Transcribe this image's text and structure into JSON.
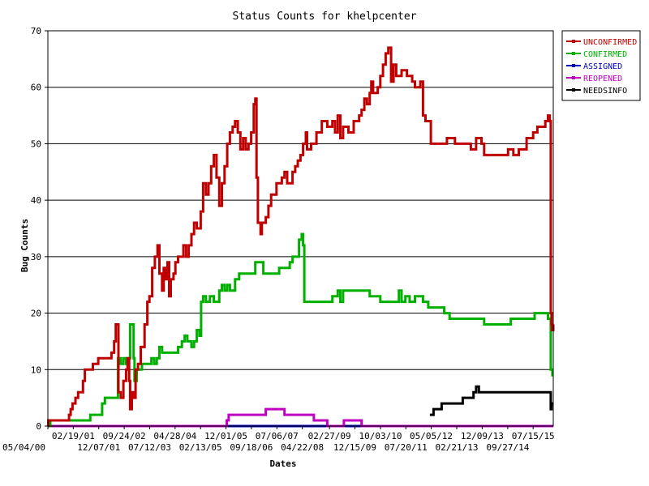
{
  "chart_data": {
    "type": "line",
    "title": "Status Counts for khelpcenter",
    "xlabel": "Dates",
    "ylabel": "Bug Counts",
    "ylim": [
      0,
      70
    ],
    "yticks": [
      0,
      10,
      20,
      30,
      40,
      50,
      60,
      70
    ],
    "grid": "horizontal",
    "legend": "top-right",
    "xlim": [
      "2000-05-04",
      "2016-03-01"
    ],
    "xticks": [
      {
        "label": "05/04/00",
        "date": "2000-05-04",
        "row": 2
      },
      {
        "label": "02/19/01",
        "date": "2001-02-19",
        "row": 1
      },
      {
        "label": "12/07/01",
        "date": "2001-12-07",
        "row": 2
      },
      {
        "label": "09/24/02",
        "date": "2002-09-24",
        "row": 1
      },
      {
        "label": "07/12/03",
        "date": "2003-07-12",
        "row": 2
      },
      {
        "label": "04/28/04",
        "date": "2004-04-28",
        "row": 1
      },
      {
        "label": "02/13/05",
        "date": "2005-02-13",
        "row": 2
      },
      {
        "label": "12/01/05",
        "date": "2005-12-01",
        "row": 1
      },
      {
        "label": "09/18/06",
        "date": "2006-09-18",
        "row": 2
      },
      {
        "label": "07/06/07",
        "date": "2007-07-06",
        "row": 1
      },
      {
        "label": "04/22/08",
        "date": "2008-04-22",
        "row": 2
      },
      {
        "label": "02/27/09",
        "date": "2009-02-27",
        "row": 1
      },
      {
        "label": "12/15/09",
        "date": "2009-12-15",
        "row": 2
      },
      {
        "label": "10/03/10",
        "date": "2010-10-03",
        "row": 1
      },
      {
        "label": "07/20/11",
        "date": "2011-07-20",
        "row": 2
      },
      {
        "label": "05/05/12",
        "date": "2012-05-05",
        "row": 1
      },
      {
        "label": "02/21/13",
        "date": "2013-02-21",
        "row": 2
      },
      {
        "label": "12/09/13",
        "date": "2013-12-09",
        "row": 1
      },
      {
        "label": "09/27/14",
        "date": "2014-09-27",
        "row": 2
      },
      {
        "label": "07/15/15",
        "date": "2015-07-15",
        "row": 1
      }
    ],
    "series": [
      {
        "name": "UNCONFIRMED",
        "color": "#c00000",
        "points": [
          [
            "2000-05-04",
            0
          ],
          [
            "2000-05-10",
            1
          ],
          [
            "2000-12-10",
            1
          ],
          [
            "2001-01-01",
            2
          ],
          [
            "2001-01-20",
            3
          ],
          [
            "2001-02-10",
            4
          ],
          [
            "2001-03-15",
            5
          ],
          [
            "2001-04-15",
            6
          ],
          [
            "2001-06-10",
            8
          ],
          [
            "2001-07-01",
            10
          ],
          [
            "2001-09-01",
            10
          ],
          [
            "2001-10-01",
            11
          ],
          [
            "2001-12-01",
            12
          ],
          [
            "2002-04-01",
            12
          ],
          [
            "2002-05-01",
            13
          ],
          [
            "2002-06-01",
            15
          ],
          [
            "2002-06-20",
            18
          ],
          [
            "2002-07-10",
            18
          ],
          [
            "2002-07-20",
            6
          ],
          [
            "2002-08-15",
            5
          ],
          [
            "2002-09-15",
            8
          ],
          [
            "2002-10-15",
            10
          ],
          [
            "2002-11-01",
            12
          ],
          [
            "2002-11-20",
            8
          ],
          [
            "2002-12-01",
            3
          ],
          [
            "2002-12-20",
            6
          ],
          [
            "2003-01-10",
            5
          ],
          [
            "2003-02-01",
            10
          ],
          [
            "2003-03-01",
            11
          ],
          [
            "2003-04-01",
            14
          ],
          [
            "2003-05-15",
            18
          ],
          [
            "2003-06-15",
            22
          ],
          [
            "2003-07-10",
            23
          ],
          [
            "2003-08-10",
            28
          ],
          [
            "2003-09-10",
            30
          ],
          [
            "2003-10-10",
            32
          ],
          [
            "2003-11-01",
            27
          ],
          [
            "2003-12-01",
            24
          ],
          [
            "2003-12-20",
            28
          ],
          [
            "2004-01-10",
            26
          ],
          [
            "2004-02-01",
            29
          ],
          [
            "2004-02-20",
            23
          ],
          [
            "2004-03-10",
            26
          ],
          [
            "2004-04-10",
            27
          ],
          [
            "2004-05-01",
            29
          ],
          [
            "2004-06-01",
            30
          ],
          [
            "2004-07-01",
            30
          ],
          [
            "2004-08-01",
            32
          ],
          [
            "2004-09-01",
            30
          ],
          [
            "2004-10-01",
            32
          ],
          [
            "2004-11-01",
            34
          ],
          [
            "2004-12-01",
            36
          ],
          [
            "2005-01-01",
            35
          ],
          [
            "2005-02-15",
            38
          ],
          [
            "2005-03-15",
            43
          ],
          [
            "2005-04-15",
            41
          ],
          [
            "2005-05-15",
            43
          ],
          [
            "2005-06-15",
            46
          ],
          [
            "2005-07-15",
            48
          ],
          [
            "2005-08-15",
            44
          ],
          [
            "2005-09-15",
            39
          ],
          [
            "2005-10-15",
            43
          ],
          [
            "2005-11-15",
            46
          ],
          [
            "2005-12-15",
            50
          ],
          [
            "2006-01-15",
            52
          ],
          [
            "2006-02-15",
            53
          ],
          [
            "2006-03-15",
            54
          ],
          [
            "2006-04-15",
            52
          ],
          [
            "2006-05-15",
            49
          ],
          [
            "2006-06-15",
            51
          ],
          [
            "2006-07-15",
            49
          ],
          [
            "2006-08-15",
            50
          ],
          [
            "2006-09-15",
            52
          ],
          [
            "2006-10-15",
            57
          ],
          [
            "2006-11-01",
            58
          ],
          [
            "2006-11-15",
            44
          ],
          [
            "2006-12-01",
            36
          ],
          [
            "2007-01-01",
            34
          ],
          [
            "2007-01-15",
            36
          ],
          [
            "2007-03-01",
            37
          ],
          [
            "2007-04-01",
            39
          ],
          [
            "2007-05-01",
            41
          ],
          [
            "2007-07-01",
            43
          ],
          [
            "2007-09-01",
            44
          ],
          [
            "2007-10-01",
            45
          ],
          [
            "2007-11-01",
            43
          ],
          [
            "2008-01-01",
            45
          ],
          [
            "2008-02-01",
            46
          ],
          [
            "2008-03-01",
            47
          ],
          [
            "2008-04-01",
            48
          ],
          [
            "2008-05-01",
            50
          ],
          [
            "2008-06-01",
            52
          ],
          [
            "2008-06-15",
            49
          ],
          [
            "2008-08-01",
            50
          ],
          [
            "2008-10-01",
            52
          ],
          [
            "2008-12-01",
            54
          ],
          [
            "2009-02-01",
            53
          ],
          [
            "2009-04-01",
            54
          ],
          [
            "2009-05-01",
            52
          ],
          [
            "2009-06-01",
            55
          ],
          [
            "2009-07-01",
            51
          ],
          [
            "2009-08-01",
            53
          ],
          [
            "2009-10-01",
            52
          ],
          [
            "2009-12-01",
            54
          ],
          [
            "2010-02-01",
            55
          ],
          [
            "2010-03-01",
            56
          ],
          [
            "2010-04-01",
            58
          ],
          [
            "2010-05-01",
            57
          ],
          [
            "2010-06-01",
            59
          ],
          [
            "2010-06-20",
            61
          ],
          [
            "2010-07-10",
            59
          ],
          [
            "2010-09-01",
            60
          ],
          [
            "2010-10-01",
            62
          ],
          [
            "2010-11-01",
            64
          ],
          [
            "2010-12-01",
            66
          ],
          [
            "2011-01-01",
            67
          ],
          [
            "2011-02-01",
            61
          ],
          [
            "2011-03-01",
            64
          ],
          [
            "2011-04-01",
            62
          ],
          [
            "2011-06-01",
            63
          ],
          [
            "2011-08-01",
            62
          ],
          [
            "2011-10-01",
            61
          ],
          [
            "2011-11-01",
            60
          ],
          [
            "2012-01-01",
            61
          ],
          [
            "2012-02-01",
            55
          ],
          [
            "2012-03-01",
            54
          ],
          [
            "2012-05-01",
            50
          ],
          [
            "2012-11-01",
            51
          ],
          [
            "2013-02-01",
            50
          ],
          [
            "2013-08-01",
            49
          ],
          [
            "2013-10-01",
            51
          ],
          [
            "2013-12-01",
            50
          ],
          [
            "2014-01-01",
            48
          ],
          [
            "2014-10-01",
            49
          ],
          [
            "2014-12-01",
            48
          ],
          [
            "2015-02-01",
            49
          ],
          [
            "2015-05-01",
            51
          ],
          [
            "2015-07-15",
            52
          ],
          [
            "2015-09-01",
            53
          ],
          [
            "2015-12-01",
            54
          ],
          [
            "2016-01-01",
            55
          ],
          [
            "2016-01-20",
            54
          ],
          [
            "2016-02-01",
            20
          ],
          [
            "2016-02-10",
            18
          ],
          [
            "2016-02-15",
            17
          ],
          [
            "2016-03-01",
            18
          ]
        ]
      },
      {
        "name": "CONFIRMED",
        "color": "#00b000",
        "points": [
          [
            "2000-05-04",
            0
          ],
          [
            "2000-06-01",
            1
          ],
          [
            "2001-08-01",
            1
          ],
          [
            "2001-09-01",
            2
          ],
          [
            "2001-12-15",
            2
          ],
          [
            "2002-01-15",
            4
          ],
          [
            "2002-02-15",
            5
          ],
          [
            "2002-06-15",
            5
          ],
          [
            "2002-07-15",
            12
          ],
          [
            "2002-08-15",
            11
          ],
          [
            "2002-09-15",
            12
          ],
          [
            "2002-10-15",
            11
          ],
          [
            "2002-11-15",
            12
          ],
          [
            "2002-12-01",
            18
          ],
          [
            "2003-01-01",
            18
          ],
          [
            "2003-01-10",
            12
          ],
          [
            "2003-01-20",
            8
          ],
          [
            "2003-02-15",
            10
          ],
          [
            "2003-03-15",
            10
          ],
          [
            "2003-04-15",
            11
          ],
          [
            "2003-07-01",
            11
          ],
          [
            "2003-08-01",
            12
          ],
          [
            "2003-09-01",
            11
          ],
          [
            "2003-10-01",
            12
          ],
          [
            "2003-11-01",
            14
          ],
          [
            "2003-12-01",
            13
          ],
          [
            "2004-06-01",
            14
          ],
          [
            "2004-07-15",
            15
          ],
          [
            "2004-08-15",
            16
          ],
          [
            "2004-09-15",
            15
          ],
          [
            "2004-11-01",
            14
          ],
          [
            "2004-12-01",
            15
          ],
          [
            "2005-01-01",
            17
          ],
          [
            "2005-02-01",
            16
          ],
          [
            "2005-02-20",
            22
          ],
          [
            "2005-03-15",
            23
          ],
          [
            "2005-04-15",
            22
          ],
          [
            "2005-06-01",
            23
          ],
          [
            "2005-07-15",
            22
          ],
          [
            "2005-09-15",
            24
          ],
          [
            "2005-10-15",
            25
          ],
          [
            "2005-11-15",
            24
          ],
          [
            "2005-12-15",
            25
          ],
          [
            "2006-01-15",
            24
          ],
          [
            "2006-03-15",
            26
          ],
          [
            "2006-05-01",
            27
          ],
          [
            "2006-11-01",
            29
          ],
          [
            "2007-02-01",
            27
          ],
          [
            "2007-08-01",
            28
          ],
          [
            "2007-10-01",
            28
          ],
          [
            "2007-12-01",
            29
          ],
          [
            "2008-01-01",
            30
          ],
          [
            "2008-02-01",
            30
          ],
          [
            "2008-03-15",
            33
          ],
          [
            "2008-04-15",
            34
          ],
          [
            "2008-05-01",
            32
          ],
          [
            "2008-05-15",
            22
          ],
          [
            "2009-04-01",
            23
          ],
          [
            "2009-06-01",
            24
          ],
          [
            "2009-07-01",
            22
          ],
          [
            "2009-08-01",
            24
          ],
          [
            "2010-06-01",
            23
          ],
          [
            "2010-10-01",
            22
          ],
          [
            "2011-05-01",
            24
          ],
          [
            "2011-06-01",
            22
          ],
          [
            "2011-07-15",
            23
          ],
          [
            "2011-09-01",
            22
          ],
          [
            "2011-11-01",
            23
          ],
          [
            "2012-02-01",
            22
          ],
          [
            "2012-04-01",
            21
          ],
          [
            "2012-10-01",
            20
          ],
          [
            "2012-12-01",
            19
          ],
          [
            "2013-07-01",
            19
          ],
          [
            "2014-01-01",
            18
          ],
          [
            "2014-11-01",
            19
          ],
          [
            "2015-08-01",
            20
          ],
          [
            "2016-01-01",
            19
          ],
          [
            "2016-02-01",
            10
          ],
          [
            "2016-02-20",
            9
          ],
          [
            "2016-03-01",
            9
          ]
        ]
      },
      {
        "name": "ASSIGNED",
        "color": "#0000c0",
        "points": [
          [
            "2000-05-04",
            0
          ],
          [
            "2016-03-01",
            0
          ]
        ]
      },
      {
        "name": "REOPENED",
        "color": "#c000c0",
        "points": [
          [
            "2000-05-04",
            0
          ],
          [
            "2005-12-01",
            0
          ],
          [
            "2005-12-10",
            1
          ],
          [
            "2006-01-01",
            2
          ],
          [
            "2007-03-01",
            3
          ],
          [
            "2007-10-01",
            2
          ],
          [
            "2008-09-01",
            1
          ],
          [
            "2009-02-01",
            0
          ],
          [
            "2009-08-01",
            0
          ],
          [
            "2009-08-10",
            1
          ],
          [
            "2010-03-01",
            0
          ],
          [
            "2016-03-01",
            0
          ]
        ]
      },
      {
        "name": "NEEDSINFO",
        "color": "#000000",
        "points": [
          [
            "2012-04-20",
            2
          ],
          [
            "2012-06-01",
            3
          ],
          [
            "2012-09-01",
            4
          ],
          [
            "2013-05-01",
            5
          ],
          [
            "2013-09-01",
            6
          ],
          [
            "2013-10-01",
            7
          ],
          [
            "2013-11-01",
            6
          ],
          [
            "2016-01-15",
            6
          ],
          [
            "2016-02-01",
            3
          ],
          [
            "2016-02-10",
            4
          ],
          [
            "2016-03-01",
            4
          ]
        ]
      }
    ]
  }
}
